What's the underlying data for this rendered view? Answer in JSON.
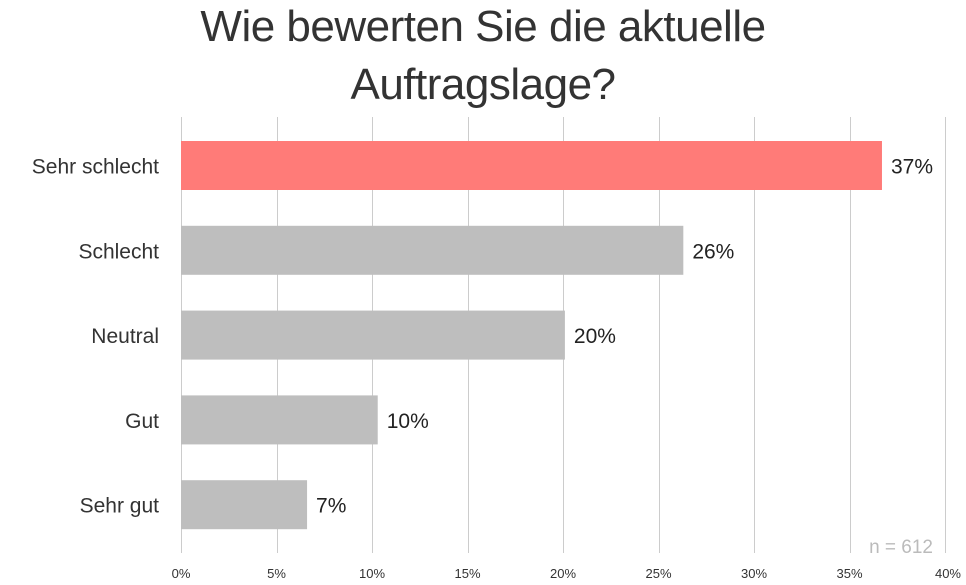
{
  "chart_data": {
    "type": "bar",
    "orientation": "horizontal",
    "title": [
      "Wie bewerten Sie die aktuelle",
      "Auftragslage?"
    ],
    "categories": [
      "Sehr schlecht",
      "Schlecht",
      "Neutral",
      "Gut",
      "Sehr gut"
    ],
    "values": [
      36.7,
      26.3,
      20.1,
      10.3,
      6.6
    ],
    "data_labels": [
      "37%",
      "26%",
      "20%",
      "10%",
      "7%"
    ],
    "xlabel": "",
    "ylabel": "",
    "xlim": [
      0,
      40
    ],
    "x_ticks": [
      0,
      5,
      10,
      15,
      20,
      25,
      30,
      35,
      40
    ],
    "x_tick_labels": [
      "0%",
      "5%",
      "10%",
      "15%",
      "20%",
      "25%",
      "30%",
      "35%",
      "40%"
    ],
    "grid": true,
    "legend": "none",
    "annotation": "n = 612",
    "colors": {
      "highlight": "#ff7b78",
      "default": "#bebebe",
      "grid": "#cccccc"
    },
    "highlight_index": 0
  }
}
